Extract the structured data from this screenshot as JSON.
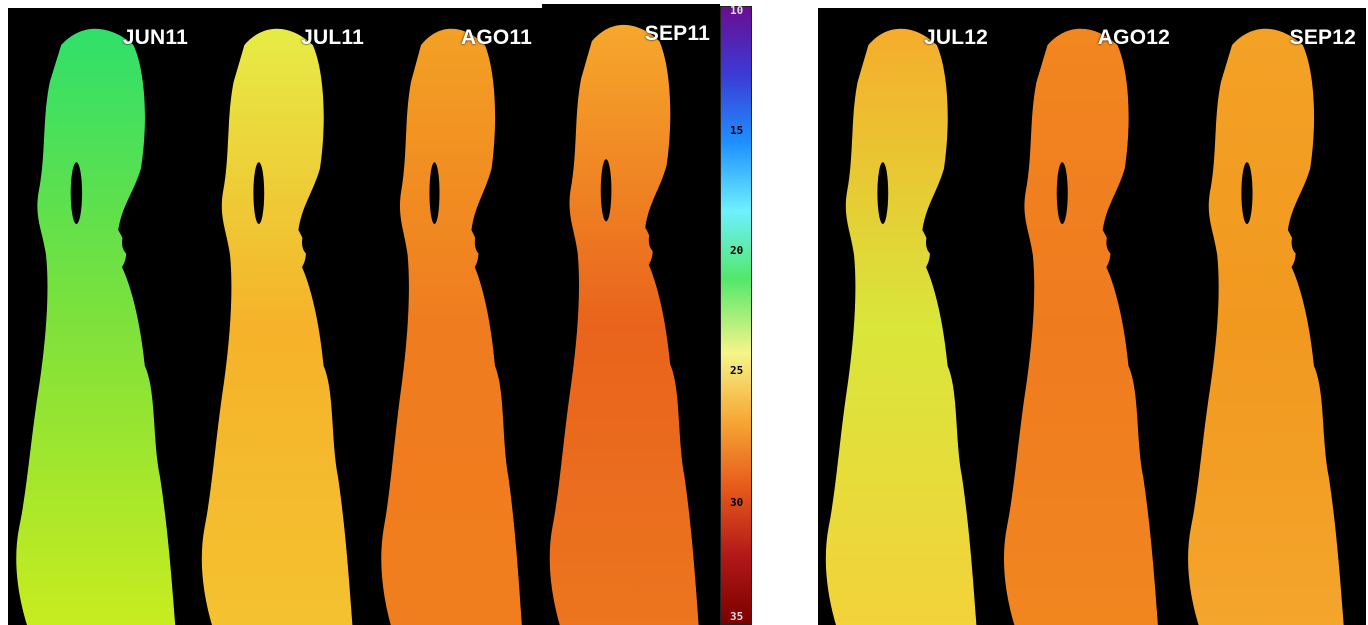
{
  "panels": [
    {
      "label": "JUN11",
      "top": "#2fe06a",
      "mid": "#7fe13a",
      "bottom": "#c8ec1f"
    },
    {
      "label": "JUL11",
      "top": "#e6ec45",
      "mid": "#f5b22a",
      "bottom": "#f4c230"
    },
    {
      "label": "AGO11",
      "top": "#f3a024",
      "mid": "#ef7c1f",
      "bottom": "#f07d1e"
    },
    {
      "label": "SEP11",
      "top": "#f6a82b",
      "mid": "#e9631c",
      "bottom": "#ec751f"
    },
    {
      "label": "JUL12",
      "top": "#f6ac2c",
      "mid": "#d9e63a",
      "bottom": "#f3d23a"
    },
    {
      "label": "AGO12",
      "top": "#f2861f",
      "mid": "#ef7b1f",
      "bottom": "#f1861f"
    },
    {
      "label": "SEP12",
      "top": "#f3a226",
      "mid": "#f1981f",
      "bottom": "#f4a52b"
    }
  ],
  "colorbar": {
    "ticks": [
      "15",
      "20",
      "25",
      "30"
    ],
    "min_label": "10",
    "max_label": "35",
    "colors": [
      "#6a0d91",
      "#3b3bd6",
      "#1e90ff",
      "#6ff0ff",
      "#52e86a",
      "#f5f58a",
      "#f6a835",
      "#e6591b",
      "#b21818",
      "#7a0000"
    ]
  }
}
